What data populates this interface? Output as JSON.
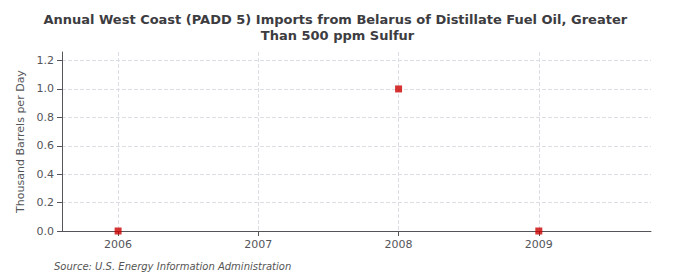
{
  "chart_data": {
    "type": "scatter",
    "title": "Annual West Coast (PADD 5) Imports from Belarus of Distillate Fuel Oil, Greater Than 500 ppm Sulfur",
    "y_label": "Thousand Barrels per Day",
    "annotations": [
      "Source: U.S. Energy Information Administration"
    ],
    "x": [
      2006,
      2008,
      2009
    ],
    "values": [
      0.0,
      1.0,
      0.0
    ],
    "color": "#cc0000",
    "marker": "square",
    "xlim": [
      2005.6,
      2009.8
    ],
    "xticks": [
      2006,
      2007,
      2008,
      2009
    ],
    "ylim": [
      0.0,
      1.26
    ],
    "yticks": [
      {
        "value": 0.0,
        "label": "0.0"
      },
      0.2,
      0.4,
      0.6,
      0.8,
      {
        "value": 1.0,
        "label": "1.0"
      },
      1.2
    ],
    "grid": true
  }
}
